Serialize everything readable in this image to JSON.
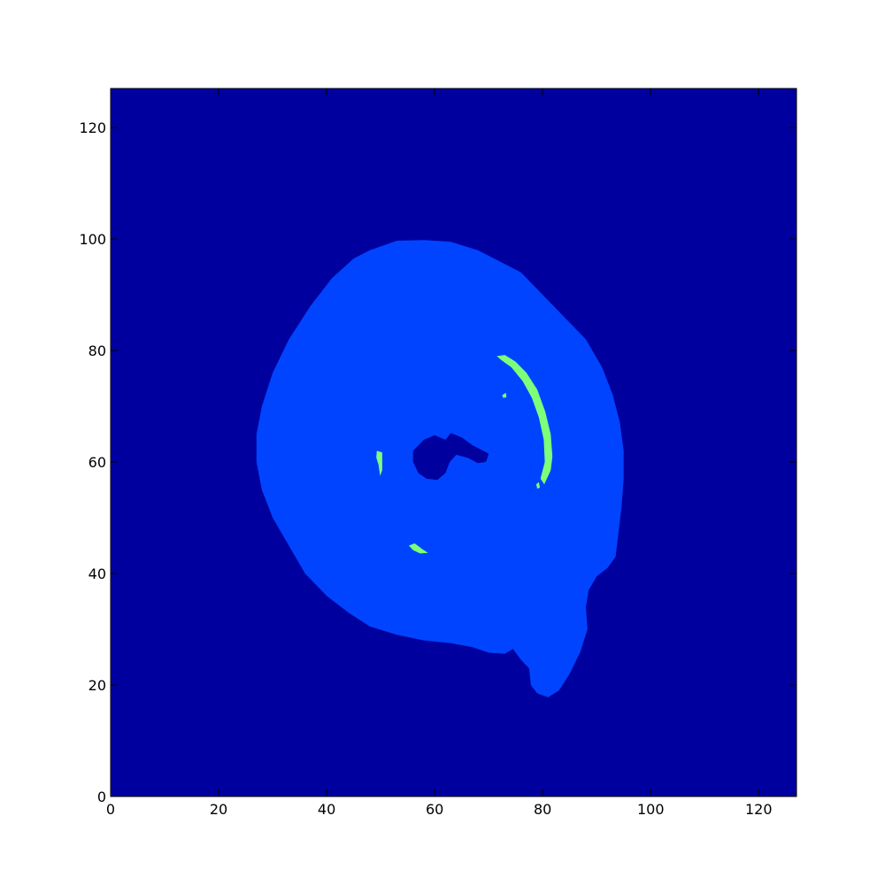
{
  "chart_data": {
    "type": "heatmap",
    "title": "",
    "xlabel": "",
    "ylabel": "",
    "xlim": [
      0,
      127
    ],
    "ylim": [
      0,
      127
    ],
    "x_ticks": [
      0,
      20,
      40,
      60,
      80,
      100,
      120
    ],
    "y_ticks": [
      0,
      20,
      40,
      60,
      80,
      100,
      120
    ],
    "grid": false,
    "legend": "none",
    "colors": {
      "background_class": "#00009f",
      "region_class": "#0044ff",
      "highlight_class": "#7cff79",
      "hole_class": "#00009f"
    },
    "regions": [
      {
        "name": "main-blob",
        "class": "region_class",
        "points": [
          [
            48,
            98
          ],
          [
            53,
            99.7
          ],
          [
            58,
            99.8
          ],
          [
            63,
            99.5
          ],
          [
            68,
            98
          ],
          [
            72,
            96
          ],
          [
            76,
            94
          ],
          [
            80,
            90
          ],
          [
            84,
            86
          ],
          [
            88,
            82
          ],
          [
            91,
            77
          ],
          [
            93,
            72
          ],
          [
            94.3,
            67
          ],
          [
            95,
            62
          ],
          [
            95,
            57
          ],
          [
            94.6,
            52
          ],
          [
            94,
            47
          ],
          [
            93.5,
            43
          ],
          [
            92,
            41
          ],
          [
            90,
            39.5
          ],
          [
            88.5,
            37
          ],
          [
            88,
            34
          ],
          [
            88.3,
            30
          ],
          [
            87,
            26
          ],
          [
            85,
            22
          ],
          [
            83,
            19
          ],
          [
            81,
            17.8
          ],
          [
            79,
            18.5
          ],
          [
            77.8,
            20
          ],
          [
            77.5,
            23
          ],
          [
            76,
            24.5
          ],
          [
            74.5,
            26.5
          ],
          [
            73,
            25.6
          ],
          [
            70,
            25.8
          ],
          [
            67,
            26.8
          ],
          [
            63,
            27.5
          ],
          [
            58,
            28
          ],
          [
            53,
            29
          ],
          [
            48,
            30.5
          ],
          [
            44,
            33
          ],
          [
            40,
            36
          ],
          [
            36,
            40
          ],
          [
            33,
            45
          ],
          [
            30,
            50
          ],
          [
            28,
            55
          ],
          [
            27,
            60
          ],
          [
            27,
            65
          ],
          [
            28,
            70
          ],
          [
            30,
            76
          ],
          [
            33,
            82
          ],
          [
            37,
            88
          ],
          [
            41,
            93
          ],
          [
            45,
            96.5
          ]
        ]
      },
      {
        "name": "center-hole",
        "class": "hole_class",
        "points": [
          [
            58,
            64
          ],
          [
            60,
            64.8
          ],
          [
            62,
            64
          ],
          [
            63,
            65.2
          ],
          [
            65,
            64.4
          ],
          [
            67,
            63
          ],
          [
            69,
            62
          ],
          [
            70,
            61.5
          ],
          [
            69.5,
            60
          ],
          [
            68,
            59.8
          ],
          [
            66,
            60.8
          ],
          [
            64,
            61.3
          ],
          [
            62.8,
            60
          ],
          [
            62,
            58
          ],
          [
            60.5,
            56.8
          ],
          [
            58.5,
            57
          ],
          [
            57,
            58
          ],
          [
            56,
            60
          ],
          [
            56,
            62
          ]
        ]
      },
      {
        "name": "green-arc",
        "class": "highlight_class",
        "points": [
          [
            71.5,
            79
          ],
          [
            73,
            79.2
          ],
          [
            75,
            78
          ],
          [
            77,
            76
          ],
          [
            79,
            73
          ],
          [
            80.5,
            69
          ],
          [
            81.5,
            65
          ],
          [
            81.8,
            61
          ],
          [
            81.5,
            58.5
          ],
          [
            80.3,
            56
          ],
          [
            79.6,
            57
          ],
          [
            80.4,
            60
          ],
          [
            80.2,
            64
          ],
          [
            79.3,
            68
          ],
          [
            78,
            71.5
          ],
          [
            76.3,
            74.5
          ],
          [
            74.2,
            77
          ],
          [
            72.3,
            78.3
          ]
        ]
      },
      {
        "name": "green-dot-top",
        "class": "highlight_class",
        "points": [
          [
            72.5,
            72
          ],
          [
            73.2,
            72.4
          ],
          [
            73.3,
            71.6
          ],
          [
            72.7,
            71.5
          ]
        ]
      },
      {
        "name": "green-dot-right",
        "class": "highlight_class",
        "points": [
          [
            78.8,
            56
          ],
          [
            79.3,
            56.4
          ],
          [
            79.5,
            55.4
          ],
          [
            79,
            55.2
          ]
        ]
      },
      {
        "name": "green-left-spot",
        "class": "highlight_class",
        "points": [
          [
            49.3,
            62
          ],
          [
            50.3,
            61.7
          ],
          [
            50.3,
            58.5
          ],
          [
            49.9,
            57.5
          ],
          [
            49.6,
            59.5
          ],
          [
            49.2,
            60.8
          ]
        ]
      },
      {
        "name": "green-lower-spot",
        "class": "highlight_class",
        "points": [
          [
            55.2,
            45
          ],
          [
            56.3,
            45.4
          ],
          [
            57.8,
            44.3
          ],
          [
            58.8,
            43.7
          ],
          [
            57.3,
            43.6
          ],
          [
            56,
            44.2
          ]
        ]
      }
    ]
  }
}
